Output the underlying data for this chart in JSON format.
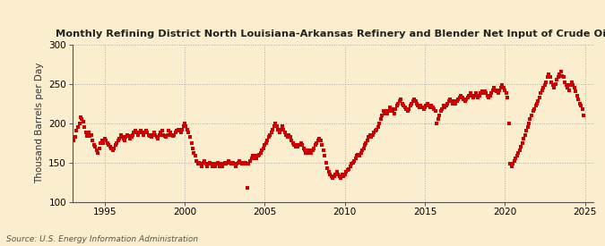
{
  "title": "Monthly Refining District North Louisiana-Arkansas Refinery and Blender Net Input of Crude Oil",
  "ylabel": "Thousand Barrels per Day",
  "source": "Source: U.S. Energy Information Administration",
  "background_color": "#faeece",
  "dot_color": "#cc0000",
  "dot_size": 7,
  "xlim_start": 1993.0,
  "xlim_end": 2025.5,
  "ylim_bottom": 100,
  "ylim_top": 300,
  "yticks": [
    100,
    150,
    200,
    250,
    300
  ],
  "xticks": [
    1995,
    2000,
    2005,
    2010,
    2015,
    2020,
    2025
  ],
  "data": [
    [
      1993.0,
      180
    ],
    [
      1993.08,
      178
    ],
    [
      1993.17,
      182
    ],
    [
      1993.25,
      190
    ],
    [
      1993.33,
      195
    ],
    [
      1993.42,
      200
    ],
    [
      1993.5,
      207
    ],
    [
      1993.58,
      205
    ],
    [
      1993.67,
      202
    ],
    [
      1993.75,
      195
    ],
    [
      1993.83,
      188
    ],
    [
      1993.92,
      183
    ],
    [
      1994.0,
      188
    ],
    [
      1994.08,
      183
    ],
    [
      1994.17,
      185
    ],
    [
      1994.25,
      178
    ],
    [
      1994.33,
      172
    ],
    [
      1994.42,
      170
    ],
    [
      1994.5,
      165
    ],
    [
      1994.58,
      162
    ],
    [
      1994.67,
      168
    ],
    [
      1994.75,
      175
    ],
    [
      1994.83,
      178
    ],
    [
      1994.92,
      175
    ],
    [
      1995.0,
      180
    ],
    [
      1995.08,
      178
    ],
    [
      1995.17,
      175
    ],
    [
      1995.25,
      172
    ],
    [
      1995.33,
      170
    ],
    [
      1995.42,
      168
    ],
    [
      1995.5,
      165
    ],
    [
      1995.58,
      168
    ],
    [
      1995.67,
      172
    ],
    [
      1995.75,
      175
    ],
    [
      1995.83,
      178
    ],
    [
      1995.92,
      180
    ],
    [
      1996.0,
      185
    ],
    [
      1996.08,
      182
    ],
    [
      1996.17,
      180
    ],
    [
      1996.25,
      178
    ],
    [
      1996.33,
      182
    ],
    [
      1996.42,
      185
    ],
    [
      1996.5,
      183
    ],
    [
      1996.58,
      180
    ],
    [
      1996.67,
      182
    ],
    [
      1996.75,
      185
    ],
    [
      1996.83,
      188
    ],
    [
      1996.92,
      190
    ],
    [
      1997.0,
      188
    ],
    [
      1997.08,
      185
    ],
    [
      1997.17,
      188
    ],
    [
      1997.25,
      190
    ],
    [
      1997.33,
      188
    ],
    [
      1997.42,
      185
    ],
    [
      1997.5,
      188
    ],
    [
      1997.58,
      190
    ],
    [
      1997.67,
      188
    ],
    [
      1997.75,
      185
    ],
    [
      1997.83,
      183
    ],
    [
      1997.92,
      182
    ],
    [
      1998.0,
      185
    ],
    [
      1998.08,
      188
    ],
    [
      1998.17,
      185
    ],
    [
      1998.25,
      182
    ],
    [
      1998.33,
      180
    ],
    [
      1998.42,
      185
    ],
    [
      1998.5,
      188
    ],
    [
      1998.58,
      190
    ],
    [
      1998.67,
      185
    ],
    [
      1998.75,
      183
    ],
    [
      1998.83,
      182
    ],
    [
      1998.92,
      185
    ],
    [
      1999.0,
      190
    ],
    [
      1999.08,
      188
    ],
    [
      1999.17,
      185
    ],
    [
      1999.25,
      183
    ],
    [
      1999.33,
      185
    ],
    [
      1999.42,
      188
    ],
    [
      1999.5,
      190
    ],
    [
      1999.58,
      192
    ],
    [
      1999.67,
      190
    ],
    [
      1999.75,
      188
    ],
    [
      1999.83,
      192
    ],
    [
      1999.92,
      196
    ],
    [
      2000.0,
      200
    ],
    [
      2000.08,
      196
    ],
    [
      2000.17,
      192
    ],
    [
      2000.25,
      188
    ],
    [
      2000.33,
      182
    ],
    [
      2000.42,
      175
    ],
    [
      2000.5,
      168
    ],
    [
      2000.58,
      162
    ],
    [
      2000.67,
      158
    ],
    [
      2000.75,
      152
    ],
    [
      2000.83,
      148
    ],
    [
      2000.92,
      150
    ],
    [
      2001.0,
      148
    ],
    [
      2001.08,
      145
    ],
    [
      2001.17,
      150
    ],
    [
      2001.25,
      152
    ],
    [
      2001.33,
      148
    ],
    [
      2001.42,
      145
    ],
    [
      2001.5,
      148
    ],
    [
      2001.58,
      150
    ],
    [
      2001.67,
      148
    ],
    [
      2001.75,
      145
    ],
    [
      2001.83,
      148
    ],
    [
      2001.92,
      145
    ],
    [
      2002.0,
      148
    ],
    [
      2002.08,
      150
    ],
    [
      2002.17,
      145
    ],
    [
      2002.25,
      148
    ],
    [
      2002.33,
      145
    ],
    [
      2002.42,
      148
    ],
    [
      2002.5,
      150
    ],
    [
      2002.58,
      148
    ],
    [
      2002.67,
      150
    ],
    [
      2002.75,
      152
    ],
    [
      2002.83,
      150
    ],
    [
      2002.92,
      148
    ],
    [
      2003.0,
      150
    ],
    [
      2003.08,
      148
    ],
    [
      2003.17,
      145
    ],
    [
      2003.25,
      148
    ],
    [
      2003.33,
      150
    ],
    [
      2003.42,
      152
    ],
    [
      2003.5,
      150
    ],
    [
      2003.58,
      148
    ],
    [
      2003.67,
      150
    ],
    [
      2003.75,
      148
    ],
    [
      2003.83,
      150
    ],
    [
      2003.92,
      118
    ],
    [
      2004.0,
      148
    ],
    [
      2004.08,
      152
    ],
    [
      2004.17,
      155
    ],
    [
      2004.25,
      158
    ],
    [
      2004.33,
      155
    ],
    [
      2004.42,
      158
    ],
    [
      2004.5,
      155
    ],
    [
      2004.58,
      158
    ],
    [
      2004.67,
      160
    ],
    [
      2004.75,
      162
    ],
    [
      2004.83,
      165
    ],
    [
      2004.92,
      168
    ],
    [
      2005.0,
      172
    ],
    [
      2005.08,
      175
    ],
    [
      2005.17,
      178
    ],
    [
      2005.25,
      182
    ],
    [
      2005.33,
      185
    ],
    [
      2005.42,
      188
    ],
    [
      2005.5,
      192
    ],
    [
      2005.58,
      196
    ],
    [
      2005.67,
      200
    ],
    [
      2005.75,
      196
    ],
    [
      2005.83,
      192
    ],
    [
      2005.92,
      188
    ],
    [
      2006.0,
      192
    ],
    [
      2006.08,
      196
    ],
    [
      2006.17,
      192
    ],
    [
      2006.25,
      188
    ],
    [
      2006.33,
      185
    ],
    [
      2006.42,
      182
    ],
    [
      2006.5,
      185
    ],
    [
      2006.58,
      182
    ],
    [
      2006.67,
      178
    ],
    [
      2006.75,
      175
    ],
    [
      2006.83,
      172
    ],
    [
      2006.92,
      170
    ],
    [
      2007.0,
      172
    ],
    [
      2007.08,
      170
    ],
    [
      2007.17,
      172
    ],
    [
      2007.25,
      175
    ],
    [
      2007.33,
      172
    ],
    [
      2007.42,
      168
    ],
    [
      2007.5,
      165
    ],
    [
      2007.58,
      162
    ],
    [
      2007.67,
      165
    ],
    [
      2007.75,
      162
    ],
    [
      2007.83,
      165
    ],
    [
      2007.92,
      162
    ],
    [
      2008.0,
      165
    ],
    [
      2008.08,
      168
    ],
    [
      2008.17,
      172
    ],
    [
      2008.25,
      175
    ],
    [
      2008.33,
      178
    ],
    [
      2008.42,
      180
    ],
    [
      2008.5,
      178
    ],
    [
      2008.58,
      172
    ],
    [
      2008.67,
      165
    ],
    [
      2008.75,
      158
    ],
    [
      2008.83,
      150
    ],
    [
      2008.92,
      143
    ],
    [
      2009.0,
      138
    ],
    [
      2009.08,
      135
    ],
    [
      2009.17,
      132
    ],
    [
      2009.25,
      130
    ],
    [
      2009.33,
      132
    ],
    [
      2009.42,
      135
    ],
    [
      2009.5,
      138
    ],
    [
      2009.58,
      135
    ],
    [
      2009.67,
      132
    ],
    [
      2009.75,
      130
    ],
    [
      2009.83,
      135
    ],
    [
      2009.92,
      132
    ],
    [
      2010.0,
      135
    ],
    [
      2010.08,
      138
    ],
    [
      2010.17,
      140
    ],
    [
      2010.25,
      142
    ],
    [
      2010.33,
      145
    ],
    [
      2010.42,
      148
    ],
    [
      2010.5,
      150
    ],
    [
      2010.58,
      152
    ],
    [
      2010.67,
      155
    ],
    [
      2010.75,
      158
    ],
    [
      2010.83,
      160
    ],
    [
      2010.92,
      158
    ],
    [
      2011.0,
      162
    ],
    [
      2011.08,
      165
    ],
    [
      2011.17,
      168
    ],
    [
      2011.25,
      172
    ],
    [
      2011.33,
      175
    ],
    [
      2011.42,
      178
    ],
    [
      2011.5,
      182
    ],
    [
      2011.58,
      185
    ],
    [
      2011.67,
      182
    ],
    [
      2011.75,
      185
    ],
    [
      2011.83,
      188
    ],
    [
      2011.92,
      190
    ],
    [
      2012.0,
      192
    ],
    [
      2012.08,
      195
    ],
    [
      2012.17,
      200
    ],
    [
      2012.25,
      205
    ],
    [
      2012.33,
      210
    ],
    [
      2012.42,
      215
    ],
    [
      2012.5,
      212
    ],
    [
      2012.58,
      215
    ],
    [
      2012.67,
      212
    ],
    [
      2012.75,
      215
    ],
    [
      2012.83,
      220
    ],
    [
      2012.92,
      218
    ],
    [
      2013.0,
      215
    ],
    [
      2013.08,
      212
    ],
    [
      2013.17,
      218
    ],
    [
      2013.25,
      222
    ],
    [
      2013.33,
      225
    ],
    [
      2013.42,
      228
    ],
    [
      2013.5,
      230
    ],
    [
      2013.58,
      225
    ],
    [
      2013.67,
      222
    ],
    [
      2013.75,
      220
    ],
    [
      2013.83,
      218
    ],
    [
      2013.92,
      215
    ],
    [
      2014.0,
      218
    ],
    [
      2014.08,
      222
    ],
    [
      2014.17,
      225
    ],
    [
      2014.25,
      228
    ],
    [
      2014.33,
      230
    ],
    [
      2014.42,
      228
    ],
    [
      2014.5,
      225
    ],
    [
      2014.58,
      222
    ],
    [
      2014.67,
      220
    ],
    [
      2014.75,
      222
    ],
    [
      2014.83,
      220
    ],
    [
      2014.92,
      218
    ],
    [
      2015.0,
      220
    ],
    [
      2015.08,
      222
    ],
    [
      2015.17,
      225
    ],
    [
      2015.25,
      222
    ],
    [
      2015.33,
      220
    ],
    [
      2015.42,
      222
    ],
    [
      2015.5,
      220
    ],
    [
      2015.58,
      218
    ],
    [
      2015.67,
      215
    ],
    [
      2015.75,
      200
    ],
    [
      2015.83,
      205
    ],
    [
      2015.92,
      210
    ],
    [
      2016.0,
      215
    ],
    [
      2016.08,
      218
    ],
    [
      2016.17,
      222
    ],
    [
      2016.25,
      220
    ],
    [
      2016.33,
      222
    ],
    [
      2016.42,
      225
    ],
    [
      2016.5,
      228
    ],
    [
      2016.58,
      230
    ],
    [
      2016.67,
      228
    ],
    [
      2016.75,
      225
    ],
    [
      2016.83,
      228
    ],
    [
      2016.92,
      225
    ],
    [
      2017.0,
      228
    ],
    [
      2017.08,
      230
    ],
    [
      2017.17,
      232
    ],
    [
      2017.25,
      235
    ],
    [
      2017.33,
      232
    ],
    [
      2017.42,
      230
    ],
    [
      2017.5,
      228
    ],
    [
      2017.58,
      230
    ],
    [
      2017.67,
      232
    ],
    [
      2017.75,
      235
    ],
    [
      2017.83,
      238
    ],
    [
      2017.92,
      235
    ],
    [
      2018.0,
      232
    ],
    [
      2018.08,
      235
    ],
    [
      2018.17,
      238
    ],
    [
      2018.25,
      235
    ],
    [
      2018.33,
      232
    ],
    [
      2018.42,
      235
    ],
    [
      2018.5,
      238
    ],
    [
      2018.58,
      240
    ],
    [
      2018.67,
      238
    ],
    [
      2018.75,
      240
    ],
    [
      2018.83,
      238
    ],
    [
      2018.92,
      235
    ],
    [
      2019.0,
      232
    ],
    [
      2019.08,
      235
    ],
    [
      2019.17,
      238
    ],
    [
      2019.25,
      242
    ],
    [
      2019.33,
      245
    ],
    [
      2019.42,
      242
    ],
    [
      2019.5,
      240
    ],
    [
      2019.58,
      238
    ],
    [
      2019.67,
      242
    ],
    [
      2019.75,
      245
    ],
    [
      2019.83,
      248
    ],
    [
      2019.92,
      245
    ],
    [
      2020.0,
      242
    ],
    [
      2020.08,
      238
    ],
    [
      2020.17,
      232
    ],
    [
      2020.25,
      200
    ],
    [
      2020.33,
      148
    ],
    [
      2020.42,
      145
    ],
    [
      2020.5,
      148
    ],
    [
      2020.58,
      152
    ],
    [
      2020.67,
      155
    ],
    [
      2020.75,
      158
    ],
    [
      2020.83,
      162
    ],
    [
      2020.92,
      165
    ],
    [
      2021.0,
      170
    ],
    [
      2021.08,
      175
    ],
    [
      2021.17,
      180
    ],
    [
      2021.25,
      185
    ],
    [
      2021.33,
      190
    ],
    [
      2021.42,
      195
    ],
    [
      2021.5,
      200
    ],
    [
      2021.58,
      205
    ],
    [
      2021.67,
      210
    ],
    [
      2021.75,
      215
    ],
    [
      2021.83,
      218
    ],
    [
      2021.92,
      222
    ],
    [
      2022.0,
      225
    ],
    [
      2022.08,
      228
    ],
    [
      2022.17,
      232
    ],
    [
      2022.25,
      238
    ],
    [
      2022.33,
      242
    ],
    [
      2022.42,
      245
    ],
    [
      2022.5,
      248
    ],
    [
      2022.58,
      252
    ],
    [
      2022.67,
      258
    ],
    [
      2022.75,
      262
    ],
    [
      2022.83,
      258
    ],
    [
      2022.92,
      252
    ],
    [
      2023.0,
      248
    ],
    [
      2023.08,
      245
    ],
    [
      2023.17,
      250
    ],
    [
      2023.25,
      255
    ],
    [
      2023.33,
      258
    ],
    [
      2023.42,
      262
    ],
    [
      2023.5,
      265
    ],
    [
      2023.58,
      260
    ],
    [
      2023.67,
      258
    ],
    [
      2023.75,
      252
    ],
    [
      2023.83,
      248
    ],
    [
      2023.92,
      245
    ],
    [
      2024.0,
      242
    ],
    [
      2024.08,
      248
    ],
    [
      2024.17,
      252
    ],
    [
      2024.25,
      248
    ],
    [
      2024.33,
      245
    ],
    [
      2024.42,
      240
    ],
    [
      2024.5,
      235
    ],
    [
      2024.58,
      230
    ],
    [
      2024.67,
      225
    ],
    [
      2024.75,
      222
    ],
    [
      2024.83,
      218
    ],
    [
      2024.92,
      210
    ]
  ]
}
